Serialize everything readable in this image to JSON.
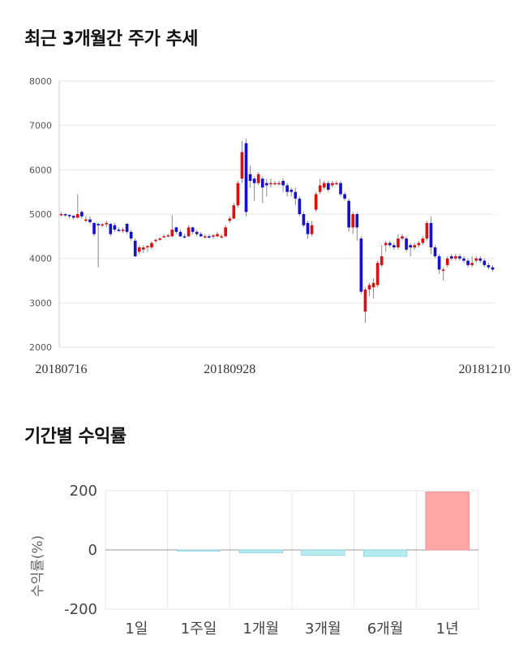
{
  "headings": {
    "price_trend": "최근 3개월간 주가 추세",
    "period_return": "기간별 수익률"
  },
  "colors": {
    "up": "#d9120f",
    "down": "#1411c9",
    "bar_negative": "#b5ecf0",
    "bar_positive": "#ffa6a6"
  },
  "chart_data": [
    {
      "type": "candlestick",
      "title": "",
      "ylim": [
        2000,
        8000
      ],
      "yticks": [
        2000,
        3000,
        4000,
        5000,
        6000,
        7000,
        8000
      ],
      "xtick_labels": [
        "20180716",
        "20180928",
        "20181210"
      ],
      "grid": true,
      "candles": [
        [
          5000,
          5000,
          5050,
          4950
        ],
        [
          5000,
          4980,
          5020,
          4940
        ],
        [
          4980,
          4960,
          5000,
          4900
        ],
        [
          4960,
          4920,
          4980,
          4880
        ],
        [
          4920,
          5000,
          5450,
          4900
        ],
        [
          5050,
          4950,
          5080,
          4900
        ],
        [
          4850,
          4880,
          4950,
          4820
        ],
        [
          4880,
          4820,
          4950,
          4780
        ],
        [
          4800,
          4550,
          4820,
          4500
        ],
        [
          4780,
          4750,
          4800,
          3800
        ],
        [
          4750,
          4770,
          4800,
          4700
        ],
        [
          4770,
          4800,
          4850,
          4700
        ],
        [
          4780,
          4550,
          4800,
          4500
        ],
        [
          4750,
          4650,
          4800,
          4600
        ],
        [
          4650,
          4620,
          4700,
          4600
        ],
        [
          4620,
          4650,
          4700,
          4580
        ],
        [
          4780,
          4600,
          4800,
          4550
        ],
        [
          4600,
          4450,
          4650,
          4400
        ],
        [
          4400,
          4050,
          4450,
          4030
        ],
        [
          4150,
          4250,
          4300,
          4100
        ],
        [
          4200,
          4250,
          4300,
          4120
        ],
        [
          4250,
          4280,
          4300,
          4150
        ],
        [
          4250,
          4350,
          4380,
          4200
        ],
        [
          4400,
          4420,
          4450,
          4350
        ],
        [
          4420,
          4450,
          4480,
          4400
        ],
        [
          4500,
          4500,
          4550,
          4480
        ],
        [
          4500,
          4520,
          4560,
          4480
        ],
        [
          4500,
          4650,
          4980,
          4480
        ],
        [
          4700,
          4600,
          4720,
          4550
        ],
        [
          4600,
          4500,
          4650,
          4480
        ],
        [
          4500,
          4480,
          4550,
          4450
        ],
        [
          4500,
          4700,
          4750,
          4480
        ],
        [
          4700,
          4600,
          4720,
          4550
        ],
        [
          4600,
          4550,
          4650,
          4500
        ],
        [
          4550,
          4500,
          4600,
          4480
        ],
        [
          4500,
          4500,
          4550,
          4450
        ],
        [
          4500,
          4480,
          4550,
          4450
        ],
        [
          4500,
          4520,
          4550,
          4450
        ],
        [
          4500,
          4550,
          4600,
          4480
        ],
        [
          4500,
          4500,
          4550,
          4450
        ],
        [
          4500,
          4700,
          4750,
          4480
        ],
        [
          4850,
          4900,
          4950,
          4800
        ],
        [
          4900,
          5200,
          5250,
          4880
        ],
        [
          5200,
          5700,
          5750,
          5150
        ],
        [
          5800,
          6400,
          6650,
          5700
        ],
        [
          6600,
          5050,
          6700,
          4950
        ],
        [
          5900,
          5750,
          6100,
          5600
        ],
        [
          5800,
          5700,
          5850,
          5300
        ],
        [
          5700,
          5900,
          5950,
          5650
        ],
        [
          5800,
          5600,
          5850,
          5250
        ],
        [
          5700,
          5650,
          5800,
          5400
        ],
        [
          5700,
          5700,
          5800,
          5600
        ],
        [
          5700,
          5700,
          5750,
          5650
        ],
        [
          5700,
          5700,
          5750,
          5650
        ],
        [
          5750,
          5650,
          5800,
          5500
        ],
        [
          5650,
          5500,
          5700,
          5400
        ],
        [
          5550,
          5500,
          5600,
          5400
        ],
        [
          5500,
          5350,
          5600,
          5200
        ],
        [
          5350,
          5000,
          5400,
          4950
        ],
        [
          5000,
          4750,
          5050,
          4700
        ],
        [
          4800,
          4550,
          4850,
          4450
        ],
        [
          4550,
          4750,
          4850,
          4500
        ],
        [
          5100,
          5450,
          5500,
          5050
        ],
        [
          5500,
          5650,
          5800,
          5450
        ],
        [
          5600,
          5700,
          5750,
          5550
        ],
        [
          5700,
          5550,
          5750,
          5500
        ],
        [
          5650,
          5700,
          5750,
          5600
        ],
        [
          5700,
          5700,
          5750,
          5650
        ],
        [
          5700,
          5450,
          5750,
          5400
        ],
        [
          5450,
          5350,
          5500,
          5300
        ],
        [
          5300,
          4700,
          5350,
          4600
        ],
        [
          4700,
          5000,
          5050,
          4550
        ],
        [
          5000,
          4700,
          5050,
          4400
        ],
        [
          4450,
          3250,
          4500,
          3200
        ],
        [
          2800,
          3300,
          3350,
          2550
        ],
        [
          3300,
          3400,
          3450,
          3150
        ],
        [
          3350,
          3450,
          3550,
          3100
        ],
        [
          3400,
          3900,
          3950,
          3350
        ],
        [
          3850,
          4050,
          4300,
          3800
        ],
        [
          4300,
          4350,
          4400,
          4150
        ],
        [
          4350,
          4300,
          4400,
          4250
        ],
        [
          4300,
          4250,
          4350,
          4200
        ],
        [
          4250,
          4450,
          4550,
          4200
        ],
        [
          4450,
          4500,
          4550,
          4400
        ],
        [
          4450,
          4200,
          4500,
          4150
        ],
        [
          4300,
          4250,
          4350,
          4050
        ],
        [
          4250,
          4300,
          4350,
          4200
        ],
        [
          4300,
          4350,
          4400,
          4250
        ],
        [
          4350,
          4450,
          4500,
          4300
        ],
        [
          4450,
          4800,
          4850,
          4400
        ],
        [
          4800,
          4250,
          4950,
          4100
        ],
        [
          4250,
          4050,
          4300,
          4000
        ],
        [
          4050,
          3750,
          4100,
          3650
        ],
        [
          3750,
          3750,
          3800,
          3500
        ],
        [
          3850,
          4000,
          4050,
          3800
        ],
        [
          4050,
          4000,
          4100,
          3950
        ],
        [
          4000,
          4050,
          4100,
          3950
        ],
        [
          4050,
          4000,
          4100,
          3950
        ],
        [
          4000,
          3950,
          4050,
          3900
        ],
        [
          3950,
          3850,
          4000,
          3800
        ],
        [
          3850,
          3900,
          4050,
          3800
        ],
        [
          3950,
          4000,
          4050,
          3900
        ],
        [
          4000,
          3950,
          4050,
          3900
        ],
        [
          3950,
          3850,
          4000,
          3800
        ],
        [
          3850,
          3800,
          3900,
          3750
        ],
        [
          3800,
          3750,
          3850,
          3700
        ]
      ]
    },
    {
      "type": "bar",
      "title": "",
      "ylabel": "수익률(%)",
      "ylim": [
        -200,
        200
      ],
      "yticks": [
        -200,
        0,
        200
      ],
      "categories": [
        "1일",
        "1주일",
        "1개월",
        "3개월",
        "6개월",
        "1년"
      ],
      "values": [
        0,
        -1,
        -10,
        -18,
        -22,
        196
      ]
    }
  ]
}
